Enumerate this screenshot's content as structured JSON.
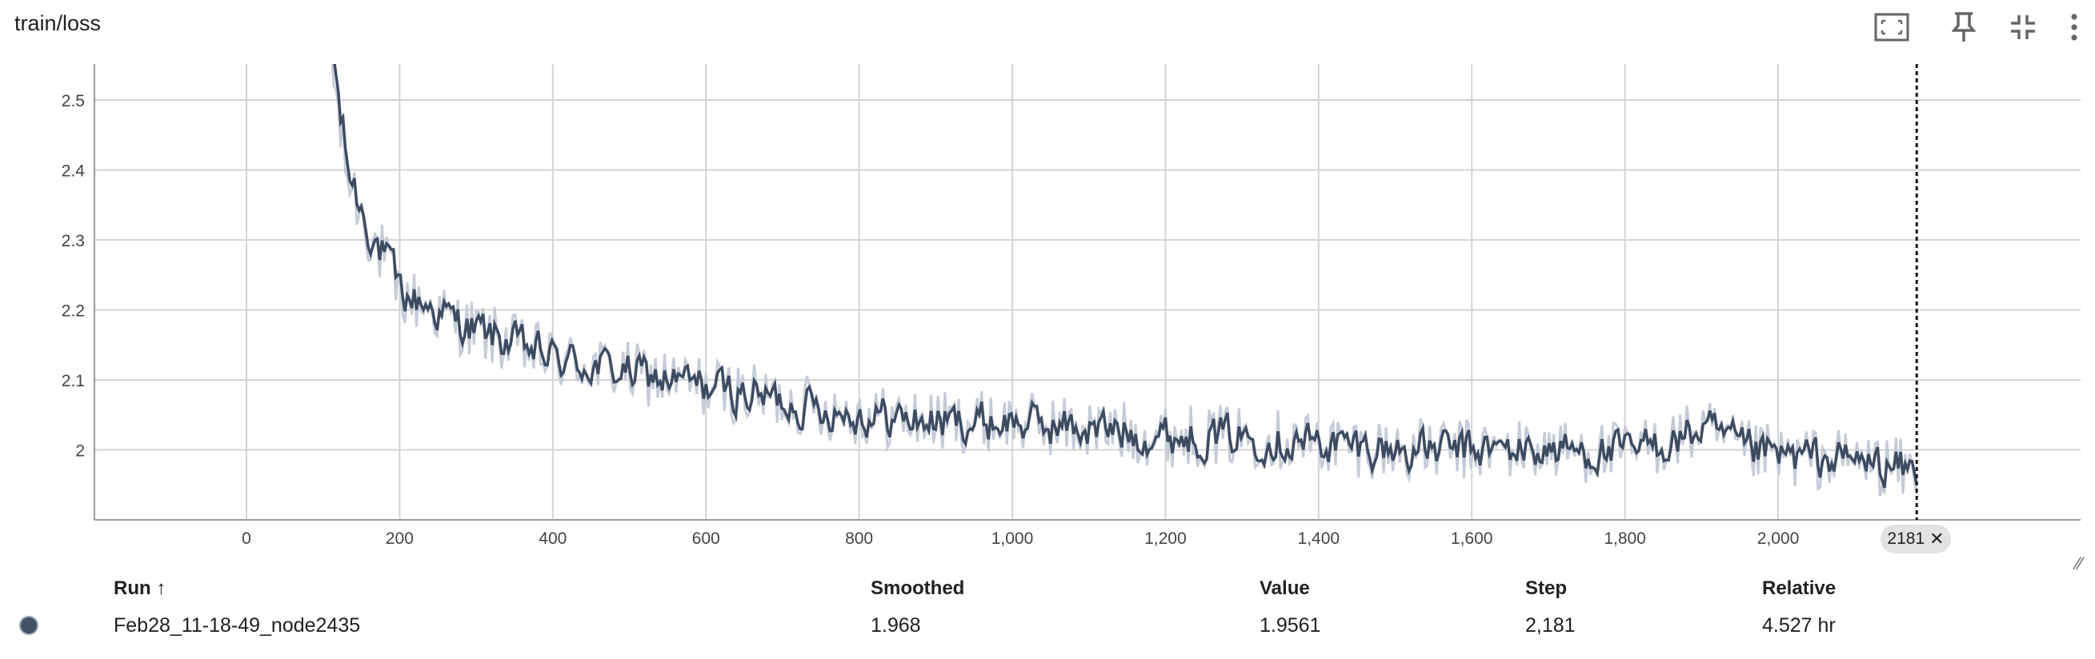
{
  "card": {
    "title": "train/loss"
  },
  "toolbar": {
    "icons": [
      "fit-domain-icon",
      "pin-icon",
      "collapse-icon",
      "more-vert-icon"
    ]
  },
  "colors": {
    "smoothed": "#3d4b61",
    "raw": "#c5cbd7",
    "grid": "#d4d4d4",
    "cursor": "#111111"
  },
  "chart_data": {
    "type": "line",
    "title": "train/loss",
    "xlabel": "",
    "ylabel": "",
    "xlim": [
      -300,
      2400
    ],
    "ylim": [
      1.9,
      2.52
    ],
    "x_ticks": [
      0,
      200,
      400,
      600,
      800,
      1000,
      1200,
      1400,
      1600,
      1800,
      2000
    ],
    "x_tick_labels": [
      "0",
      "200",
      "400",
      "600",
      "800",
      "1,000",
      "1,200",
      "1,400",
      "1,600",
      "1,800",
      "2,000"
    ],
    "y_ticks": [
      2,
      2.1,
      2.2,
      2.3,
      2.4,
      2.5
    ],
    "y_tick_labels": [
      "2",
      "2.1",
      "2.2",
      "2.3",
      "2.4",
      "2.5"
    ],
    "grid": true,
    "cursor_step": 2181,
    "cursor_label": "2181",
    "smoothed_keypoints": [
      [
        105,
        2.65
      ],
      [
        115,
        2.52
      ],
      [
        130,
        2.4
      ],
      [
        150,
        2.34
      ],
      [
        165,
        2.3
      ],
      [
        180,
        2.27
      ],
      [
        200,
        2.22
      ],
      [
        230,
        2.21
      ],
      [
        260,
        2.19
      ],
      [
        300,
        2.17
      ],
      [
        350,
        2.15
      ],
      [
        400,
        2.13
      ],
      [
        450,
        2.12
      ],
      [
        500,
        2.11
      ],
      [
        550,
        2.1
      ],
      [
        600,
        2.09
      ],
      [
        650,
        2.08
      ],
      [
        700,
        2.07
      ],
      [
        750,
        2.06
      ],
      [
        800,
        2.05
      ],
      [
        900,
        2.04
      ],
      [
        1000,
        2.04
      ],
      [
        1100,
        2.03
      ],
      [
        1200,
        2.02
      ],
      [
        1300,
        2.02
      ],
      [
        1400,
        2.01
      ],
      [
        1500,
        2.0
      ],
      [
        1600,
        2.0
      ],
      [
        1700,
        2.0
      ],
      [
        1800,
        1.995
      ],
      [
        1880,
        2.02
      ],
      [
        1900,
        2.03
      ],
      [
        1950,
        2.0
      ],
      [
        2000,
        1.99
      ],
      [
        2100,
        1.985
      ],
      [
        2181,
        1.968
      ]
    ],
    "series": [
      {
        "name": "Feb28_11-18-49_node2435",
        "role": "smoothed",
        "last_value": 1.968
      },
      {
        "name": "Feb28_11-18-49_node2435",
        "role": "raw",
        "last_value": 1.9561
      }
    ]
  },
  "legend": {
    "headers": {
      "run": "Run ↑",
      "smoothed": "Smoothed",
      "value": "Value",
      "step": "Step",
      "relative": "Relative"
    },
    "rows": [
      {
        "run": "Feb28_11-18-49_node2435",
        "smoothed": "1.968",
        "value": "1.9561",
        "step": "2,181",
        "relative": "4.527 hr"
      }
    ]
  }
}
